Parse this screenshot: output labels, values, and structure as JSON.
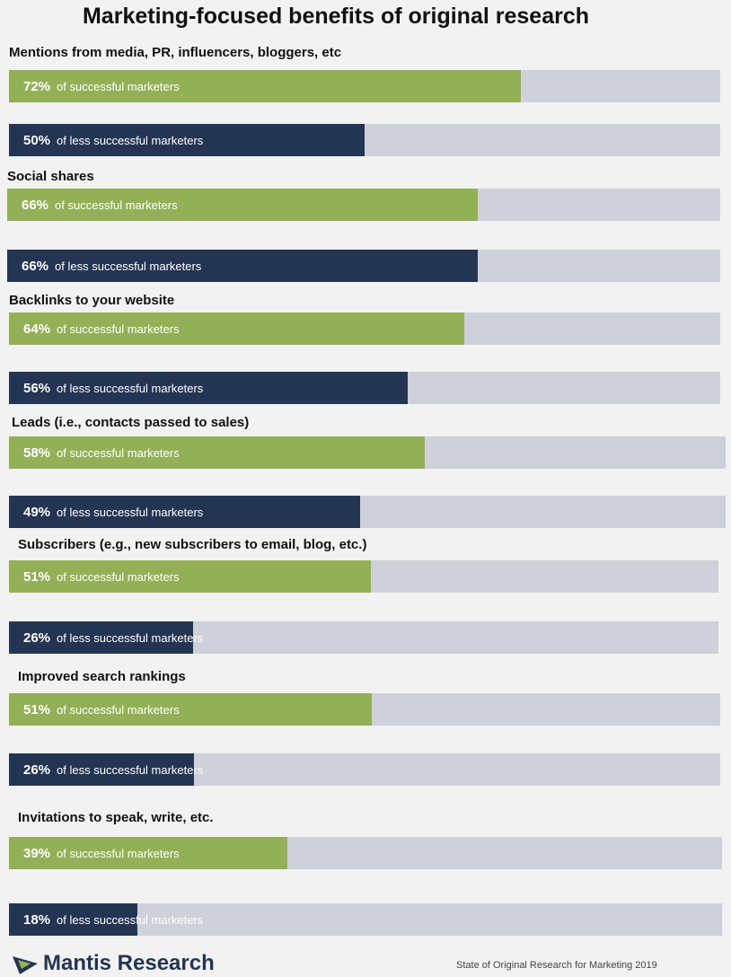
{
  "chart_data": {
    "type": "bar",
    "title": "Marketing-focused benefits of original research",
    "groups": [
      {
        "label": "Mentions from media, PR, influencers, bloggers, etc",
        "bars": [
          {
            "value": 72,
            "pct_label": "72%",
            "desc": "of successful marketers",
            "series": "successful"
          },
          {
            "value": 50,
            "pct_label": "50%",
            "desc": "of less successful marketers",
            "series": "less successful"
          }
        ]
      },
      {
        "label": "Social shares",
        "bars": [
          {
            "value": 66,
            "pct_label": "66%",
            "desc": "of successful marketers",
            "series": "successful"
          },
          {
            "value": 66,
            "pct_label": "66%",
            "desc": "of less successful marketers",
            "series": "less successful"
          }
        ]
      },
      {
        "label": "Backlinks to your website",
        "bars": [
          {
            "value": 64,
            "pct_label": "64%",
            "desc": "of successful marketers",
            "series": "successful"
          },
          {
            "value": 56,
            "pct_label": "56%",
            "desc": "of less successful marketers",
            "series": "less successful"
          }
        ]
      },
      {
        "label": "Leads (i.e., contacts passed to sales)",
        "bars": [
          {
            "value": 58,
            "pct_label": "58%",
            "desc": "of successful marketers",
            "series": "successful"
          },
          {
            "value": 49,
            "pct_label": "49%",
            "desc": "of less successful marketers",
            "series": "less successful"
          }
        ]
      },
      {
        "label": "Subscribers (e.g., new subscribers to email, blog, etc.)",
        "bars": [
          {
            "value": 51,
            "pct_label": "51%",
            "desc": "of successful marketers",
            "series": "successful"
          },
          {
            "value": 26,
            "pct_label": "26%",
            "desc": "of less successful marketers",
            "series": "less successful"
          }
        ]
      },
      {
        "label": "Improved search rankings",
        "bars": [
          {
            "value": 51,
            "pct_label": "51%",
            "desc": "of successful marketers",
            "series": "successful"
          },
          {
            "value": 26,
            "pct_label": "26%",
            "desc": "of less successful marketers",
            "series": "less successful"
          }
        ]
      },
      {
        "label": "Invitations to speak, write, etc.",
        "bars": [
          {
            "value": 39,
            "pct_label": "39%",
            "desc": "of successful marketers",
            "series": "successful"
          },
          {
            "value": 18,
            "pct_label": "18%",
            "desc": "of less successful marketers",
            "series": "less successful"
          }
        ]
      }
    ],
    "xlim": [
      0,
      100
    ],
    "colors": {
      "successful": "#93b057",
      "less successful": "#243553",
      "track": "#ced1d9"
    }
  },
  "footer": {
    "logo_text": "Mantis Research",
    "source": "State of Original Research for Marketing 2019"
  }
}
